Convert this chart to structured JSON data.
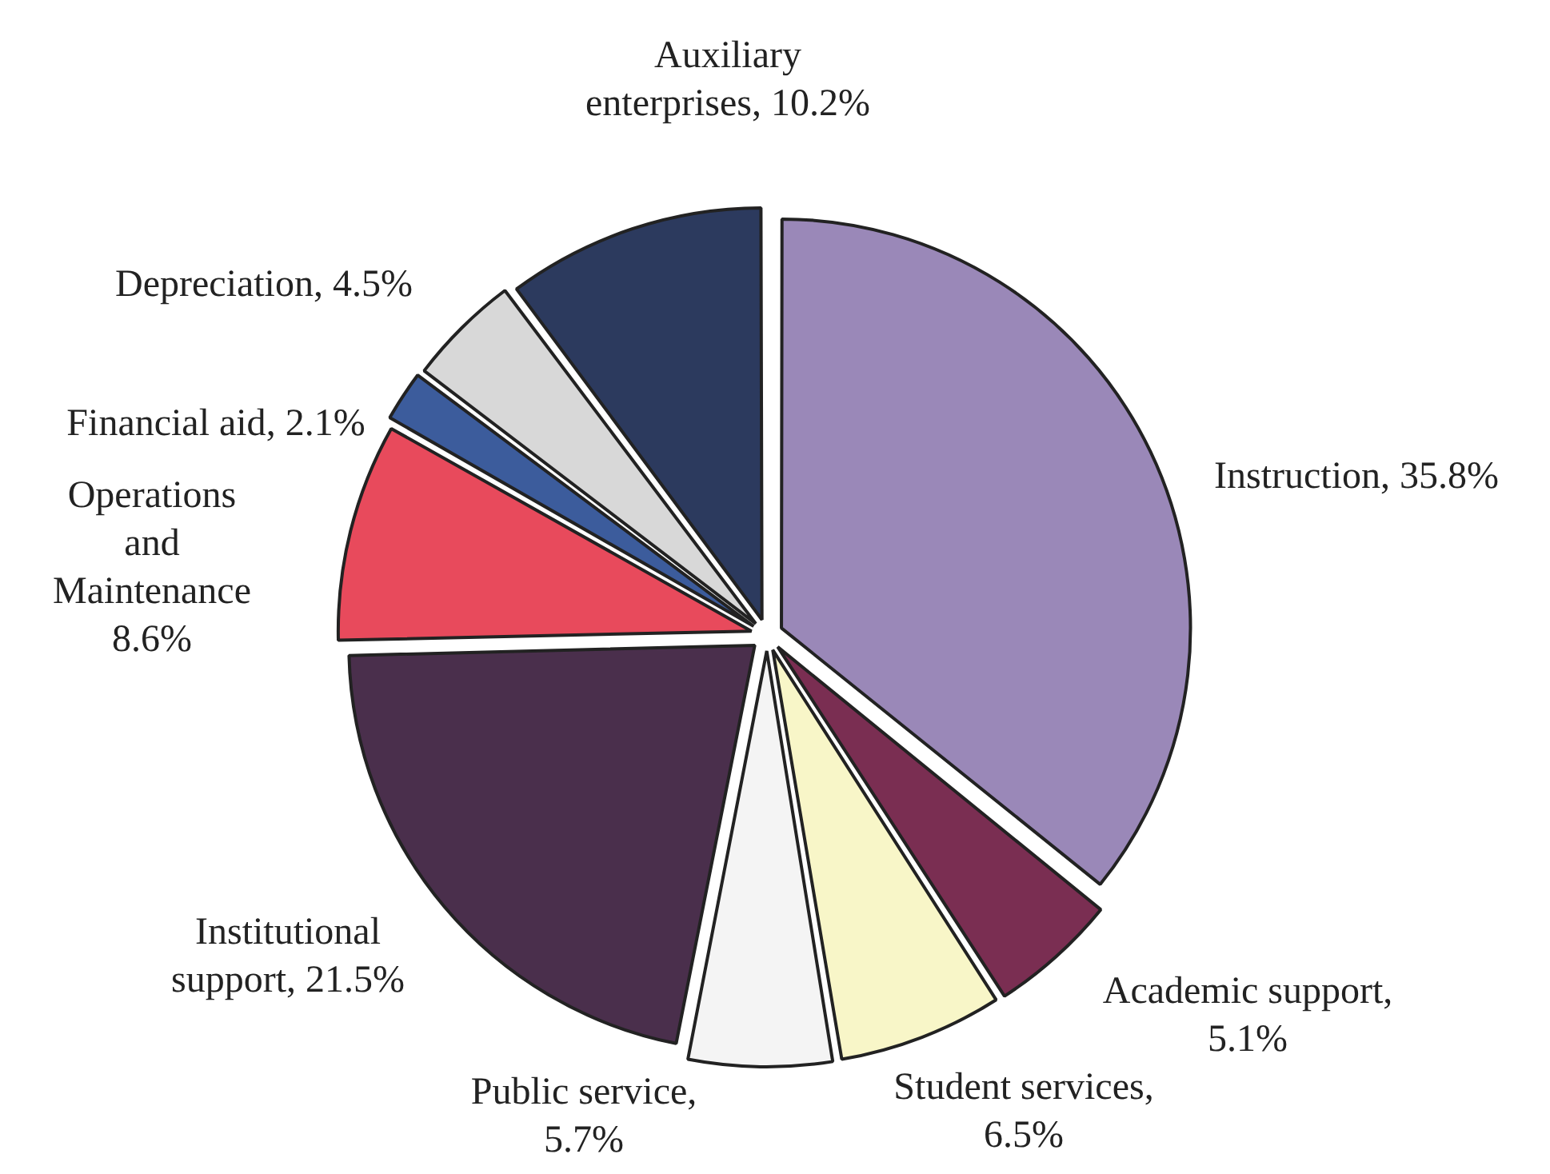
{
  "chart_data": {
    "type": "pie",
    "categories": [
      "Instruction",
      "Academic support",
      "Student services",
      "Public service",
      "Institutional support",
      "Operations and Maintenance",
      "Financial aid",
      "Depreciation",
      "Auxiliary enterprises"
    ],
    "values": [
      35.8,
      5.1,
      6.5,
      5.7,
      21.5,
      8.6,
      2.1,
      4.5,
      10.2
    ],
    "colors": [
      "#9a88b8",
      "#7a2e52",
      "#f8f6c8",
      "#f4f4f4",
      "#4a2f4c",
      "#e84a5c",
      "#3c5c9c",
      "#d8d8d8",
      "#2c3a5e"
    ],
    "value_labels": [
      ", 35.8%",
      ", 5.1%",
      ", 6.5%",
      ", 5.7%",
      ", 21.5%",
      " 8.6%",
      ", 2.1%",
      ", 4.5%",
      ", 10.2%"
    ],
    "legend": false
  }
}
